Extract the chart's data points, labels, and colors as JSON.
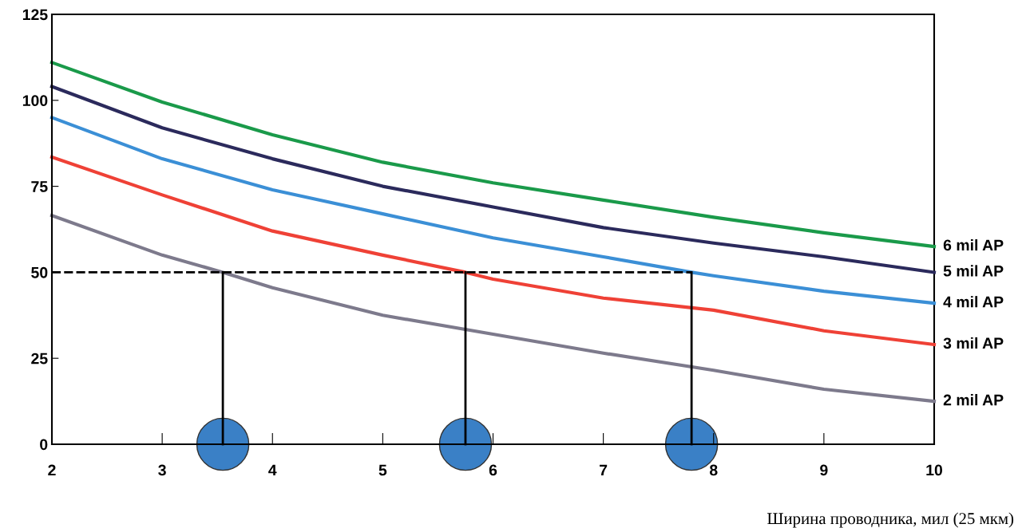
{
  "chart_data": {
    "type": "line",
    "xlabel": "Ширина проводника, мил (25 мкм)",
    "xlim": [
      2,
      10
    ],
    "ylim": [
      0,
      125
    ],
    "xticks": [
      2,
      3,
      4,
      5,
      6,
      7,
      8,
      9,
      10
    ],
    "yticks": [
      0,
      25,
      50,
      75,
      100,
      125
    ],
    "grid": false,
    "legend": false,
    "marker": "none",
    "series": [
      {
        "name": "6 mil AP",
        "color": "#1a9a4a",
        "x": [
          2,
          3,
          4,
          5,
          6,
          7,
          8,
          9,
          10
        ],
        "values": [
          111,
          99.5,
          90,
          82,
          76,
          71,
          66,
          61.5,
          57.5
        ]
      },
      {
        "name": "5 mil AP",
        "color": "#2b2a5c",
        "x": [
          2,
          3,
          4,
          5,
          6,
          7,
          8,
          9,
          10
        ],
        "values": [
          104,
          92,
          83,
          75,
          69,
          63,
          58.5,
          54.5,
          50
        ]
      },
      {
        "name": "4 mil AP",
        "color": "#3b8fd6",
        "x": [
          2,
          3,
          4,
          5,
          6,
          7,
          7.8,
          8,
          9,
          10
        ],
        "values": [
          95,
          83,
          74,
          67,
          60,
          54.5,
          50,
          49,
          44.5,
          41
        ]
      },
      {
        "name": "3 mil AP",
        "color": "#ef4136",
        "x": [
          2,
          3,
          4,
          5,
          5.75,
          6,
          7,
          8,
          9,
          10
        ],
        "values": [
          83.5,
          72.5,
          62,
          55,
          50,
          48,
          42.5,
          39,
          33,
          29
        ]
      },
      {
        "name": "2 mil AP",
        "color": "#7d7a8c",
        "x": [
          2,
          3,
          3.55,
          4,
          5,
          6,
          7,
          8,
          9,
          10
        ],
        "values": [
          66.5,
          55,
          50,
          45.5,
          37.5,
          32,
          26.5,
          21.5,
          16,
          12.5
        ]
      },
      {
        "color": "#000000",
        "line_style": "dashed",
        "x": [
          2,
          7.8
        ],
        "values": [
          50,
          50
        ]
      },
      {
        "color": "#000000",
        "x": [
          3.55,
          3.55
        ],
        "values": [
          50,
          0
        ]
      },
      {
        "color": "#000000",
        "x": [
          5.75,
          5.75
        ],
        "values": [
          50,
          0
        ]
      },
      {
        "color": "#000000",
        "x": [
          7.8,
          7.8
        ],
        "values": [
          50,
          0
        ]
      },
      {
        "type": "scatter",
        "marker": "circle",
        "color": "#3a80c6",
        "x": [
          3.55,
          5.75,
          7.8
        ],
        "values": [
          0,
          0,
          0
        ]
      }
    ]
  }
}
